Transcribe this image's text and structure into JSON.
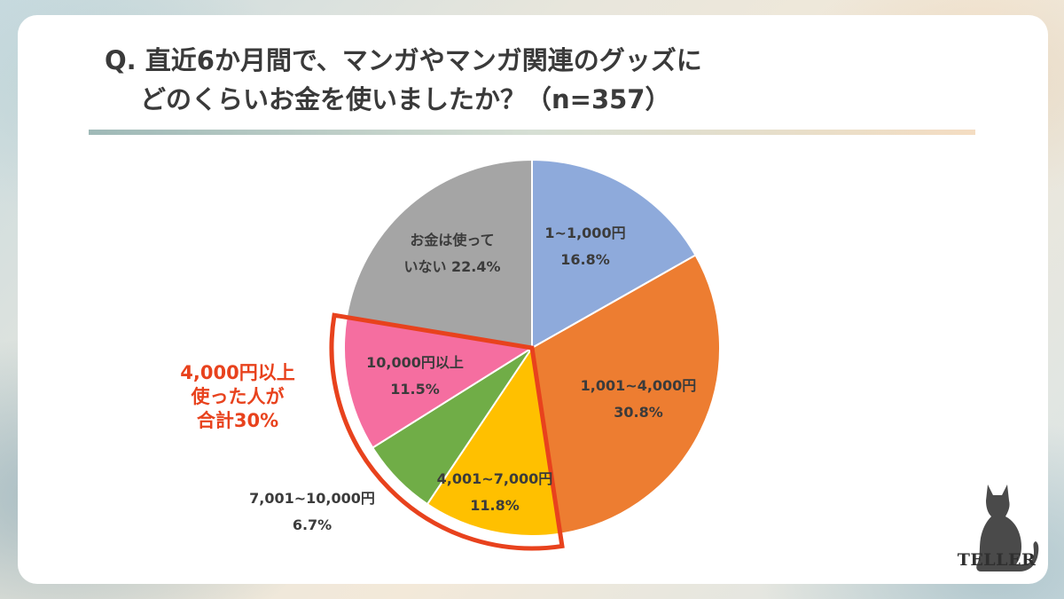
{
  "title": {
    "line1": "Q. 直近6か月間で、マンガやマンガ関連のグッズに",
    "line2": "どのくらいお金を使いましたか？（n=357）"
  },
  "chart_data": {
    "type": "pie",
    "slices": [
      {
        "label_lines": [
          "1~1,000円"
        ],
        "value": 16.8,
        "value_label": "16.8%",
        "color": "#8eaadb"
      },
      {
        "label_lines": [
          "1,001~4,000円"
        ],
        "value": 30.8,
        "value_label": "30.8%",
        "color": "#ed7d31"
      },
      {
        "label_lines": [
          "4,001~7,000円"
        ],
        "value": 11.8,
        "value_label": "11.8%",
        "color": "#ffc000"
      },
      {
        "label_lines": [
          "7,001~10,000円"
        ],
        "value": 6.7,
        "value_label": "6.7%",
        "color": "#70ad47"
      },
      {
        "label_lines": [
          "10,000円以上"
        ],
        "value": 11.5,
        "value_label": "11.5%",
        "color": "#f56ea0"
      },
      {
        "label_lines": [
          "お金は使って",
          "いない"
        ],
        "value": 22.4,
        "value_label": "22.4%",
        "color": "#a5a5a5"
      }
    ],
    "start_angle_deg": 0,
    "direction": "clockwise",
    "callout": {
      "lines": [
        "4,000円以上",
        "使った人が",
        "合計30%"
      ],
      "color": "#e8421d"
    }
  },
  "logo": {
    "text": "TELLER",
    "icon": "cat-silhouette-icon"
  }
}
